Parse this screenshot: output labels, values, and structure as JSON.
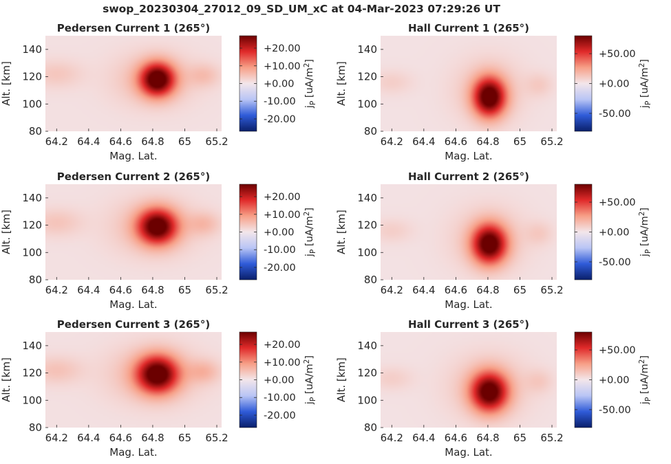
{
  "suptitle": "swop_20230304_27012_09_SD_UM_xC at 04-Mar-2023 07:29:26 UT",
  "colormap": {
    "name": "seismic-like diverging",
    "stops": [
      "#0a1f6a",
      "#2f5bd8",
      "#b9c5f5",
      "#f3e6ea",
      "#f7a088",
      "#e02a2a",
      "#6b0000"
    ]
  },
  "chart_data": [
    {
      "type": "heatmap",
      "title": "Pedersen Current 1 (265°)",
      "xlabel": "Mag. Lat.",
      "ylabel": "Alt. [km]",
      "xlim": [
        64.13,
        65.23
      ],
      "ylim": [
        80,
        150
      ],
      "xticks": [
        64.2,
        64.4,
        64.6,
        64.8,
        65,
        65.2
      ],
      "xtick_labels": [
        "64.2",
        "64.4",
        "64.6",
        "64.8",
        "65",
        "65.2"
      ],
      "yticks": [
        80,
        100,
        120,
        140
      ],
      "ytick_labels": [
        "80",
        "100",
        "120",
        "140"
      ],
      "colorbar": {
        "label": "jP [uA/m2]",
        "vmin": -27,
        "vmax": 27,
        "ticks": [
          20,
          10,
          0,
          -10,
          -20
        ],
        "tick_labels": [
          "+20.00",
          "+10.00",
          "+0.00",
          "-10.00",
          "-20.00"
        ]
      },
      "background_value": 0.8,
      "blobs": [
        {
          "lat": 64.83,
          "alt": 118,
          "peak": 27,
          "sig_lat": 0.075,
          "sig_alt": 8.5
        },
        {
          "lat": 64.8,
          "alt": 118,
          "peak": 5,
          "sig_lat": 0.17,
          "sig_alt": 13
        },
        {
          "lat": 64.2,
          "alt": 122,
          "peak": 3.2,
          "sig_lat": 0.11,
          "sig_alt": 7
        },
        {
          "lat": 65.12,
          "alt": 121,
          "peak": 4,
          "sig_lat": 0.07,
          "sig_alt": 6
        }
      ]
    },
    {
      "type": "heatmap",
      "title": "Hall Current 1 (265°)",
      "xlabel": "Mag. Lat.",
      "ylabel": "Alt. [km]",
      "xlim": [
        64.13,
        65.23
      ],
      "ylim": [
        80,
        150
      ],
      "xticks": [
        64.2,
        64.4,
        64.6,
        64.8,
        65,
        65.2
      ],
      "xtick_labels": [
        "64.2",
        "64.4",
        "64.6",
        "64.8",
        "65",
        "65.2"
      ],
      "yticks": [
        80,
        100,
        120,
        140
      ],
      "ytick_labels": [
        "80",
        "100",
        "120",
        "140"
      ],
      "colorbar": {
        "label": "jP [uA/m2]",
        "vmin": -80,
        "vmax": 80,
        "ticks": [
          50,
          0,
          -50
        ],
        "tick_labels": [
          "+50.00",
          "+0.00",
          "-50.00"
        ]
      },
      "background_value": 2,
      "blobs": [
        {
          "lat": 64.81,
          "alt": 105,
          "peak": 82,
          "sig_lat": 0.07,
          "sig_alt": 10
        },
        {
          "lat": 64.8,
          "alt": 110,
          "peak": 12,
          "sig_lat": 0.15,
          "sig_alt": 16
        },
        {
          "lat": 64.2,
          "alt": 116,
          "peak": 7,
          "sig_lat": 0.09,
          "sig_alt": 6
        },
        {
          "lat": 65.12,
          "alt": 114,
          "peak": 8,
          "sig_lat": 0.06,
          "sig_alt": 6
        }
      ]
    },
    {
      "type": "heatmap",
      "title": "Pedersen Current 2 (265°)",
      "xlabel": "Mag. Lat.",
      "ylabel": "Alt. [km]",
      "xlim": [
        64.13,
        65.23
      ],
      "ylim": [
        80,
        150
      ],
      "xticks": [
        64.2,
        64.4,
        64.6,
        64.8,
        65,
        65.2
      ],
      "xtick_labels": [
        "64.2",
        "64.4",
        "64.6",
        "64.8",
        "65",
        "65.2"
      ],
      "yticks": [
        80,
        100,
        120,
        140
      ],
      "ytick_labels": [
        "80",
        "100",
        "120",
        "140"
      ],
      "colorbar": {
        "label": "jP [uA/m2]",
        "vmin": -27,
        "vmax": 27,
        "ticks": [
          20,
          10,
          0,
          -10,
          -20
        ],
        "tick_labels": [
          "+20.00",
          "+10.00",
          "+0.00",
          "-10.00",
          "-20.00"
        ]
      },
      "background_value": 0.8,
      "blobs": [
        {
          "lat": 64.83,
          "alt": 119,
          "peak": 26,
          "sig_lat": 0.085,
          "sig_alt": 9
        },
        {
          "lat": 64.8,
          "alt": 119,
          "peak": 5,
          "sig_lat": 0.18,
          "sig_alt": 14
        },
        {
          "lat": 64.2,
          "alt": 122,
          "peak": 3.5,
          "sig_lat": 0.11,
          "sig_alt": 7
        },
        {
          "lat": 65.12,
          "alt": 121,
          "peak": 4.5,
          "sig_lat": 0.07,
          "sig_alt": 6
        }
      ]
    },
    {
      "type": "heatmap",
      "title": "Hall Current 2 (265°)",
      "xlabel": "Mag. Lat.",
      "ylabel": "Alt. [km]",
      "xlim": [
        64.13,
        65.23
      ],
      "ylim": [
        80,
        150
      ],
      "xticks": [
        64.2,
        64.4,
        64.6,
        64.8,
        65,
        65.2
      ],
      "xtick_labels": [
        "64.2",
        "64.4",
        "64.6",
        "64.8",
        "65",
        "65.2"
      ],
      "yticks": [
        80,
        100,
        120,
        140
      ],
      "ytick_labels": [
        "80",
        "100",
        "120",
        "140"
      ],
      "colorbar": {
        "label": "jP [uA/m2]",
        "vmin": -80,
        "vmax": 80,
        "ticks": [
          50,
          0,
          -50
        ],
        "tick_labels": [
          "+50.00",
          "+0.00",
          "-50.00"
        ]
      },
      "background_value": 2,
      "blobs": [
        {
          "lat": 64.81,
          "alt": 106,
          "peak": 80,
          "sig_lat": 0.075,
          "sig_alt": 10
        },
        {
          "lat": 64.8,
          "alt": 110,
          "peak": 12,
          "sig_lat": 0.16,
          "sig_alt": 16
        },
        {
          "lat": 64.2,
          "alt": 116,
          "peak": 7,
          "sig_lat": 0.09,
          "sig_alt": 6
        },
        {
          "lat": 65.12,
          "alt": 114,
          "peak": 8,
          "sig_lat": 0.06,
          "sig_alt": 6
        }
      ]
    },
    {
      "type": "heatmap",
      "title": "Pedersen Current 3 (265°)",
      "xlabel": "Mag. Lat.",
      "ylabel": "Alt. [km]",
      "xlim": [
        64.13,
        65.23
      ],
      "ylim": [
        80,
        150
      ],
      "xticks": [
        64.2,
        64.4,
        64.6,
        64.8,
        65,
        65.2
      ],
      "xtick_labels": [
        "64.2",
        "64.4",
        "64.6",
        "64.8",
        "65",
        "65.2"
      ],
      "yticks": [
        80,
        100,
        120,
        140
      ],
      "ytick_labels": [
        "80",
        "100",
        "120",
        "140"
      ],
      "colorbar": {
        "label": "jP [uA/m2]",
        "vmin": -27,
        "vmax": 27,
        "ticks": [
          20,
          10,
          0,
          -10,
          -20
        ],
        "tick_labels": [
          "+20.00",
          "+10.00",
          "+0.00",
          "-10.00",
          "-20.00"
        ]
      },
      "background_value": 0.8,
      "blobs": [
        {
          "lat": 64.83,
          "alt": 119,
          "peak": 26,
          "sig_lat": 0.09,
          "sig_alt": 9.5
        },
        {
          "lat": 64.8,
          "alt": 119,
          "peak": 5.5,
          "sig_lat": 0.19,
          "sig_alt": 14
        },
        {
          "lat": 64.2,
          "alt": 122,
          "peak": 3.8,
          "sig_lat": 0.11,
          "sig_alt": 7
        },
        {
          "lat": 65.12,
          "alt": 121,
          "peak": 5,
          "sig_lat": 0.07,
          "sig_alt": 6
        }
      ]
    },
    {
      "type": "heatmap",
      "title": "Hall Current 3 (265°)",
      "xlabel": "Mag. Lat.",
      "ylabel": "Alt. [km]",
      "xlim": [
        64.13,
        65.23
      ],
      "ylim": [
        80,
        150
      ],
      "xticks": [
        64.2,
        64.4,
        64.6,
        64.8,
        65,
        65.2
      ],
      "xtick_labels": [
        "64.2",
        "64.4",
        "64.6",
        "64.8",
        "65",
        "65.2"
      ],
      "yticks": [
        80,
        100,
        120,
        140
      ],
      "ytick_labels": [
        "80",
        "100",
        "120",
        "140"
      ],
      "colorbar": {
        "label": "jP [uA/m2]",
        "vmin": -80,
        "vmax": 80,
        "ticks": [
          50,
          0,
          -50
        ],
        "tick_labels": [
          "+50.00",
          "+0.00",
          "-50.00"
        ]
      },
      "background_value": 2,
      "blobs": [
        {
          "lat": 64.81,
          "alt": 106,
          "peak": 78,
          "sig_lat": 0.08,
          "sig_alt": 10
        },
        {
          "lat": 64.8,
          "alt": 110,
          "peak": 13,
          "sig_lat": 0.17,
          "sig_alt": 16
        },
        {
          "lat": 64.2,
          "alt": 116,
          "peak": 7,
          "sig_lat": 0.09,
          "sig_alt": 6
        },
        {
          "lat": 65.12,
          "alt": 114,
          "peak": 8,
          "sig_lat": 0.06,
          "sig_alt": 6
        }
      ]
    }
  ]
}
